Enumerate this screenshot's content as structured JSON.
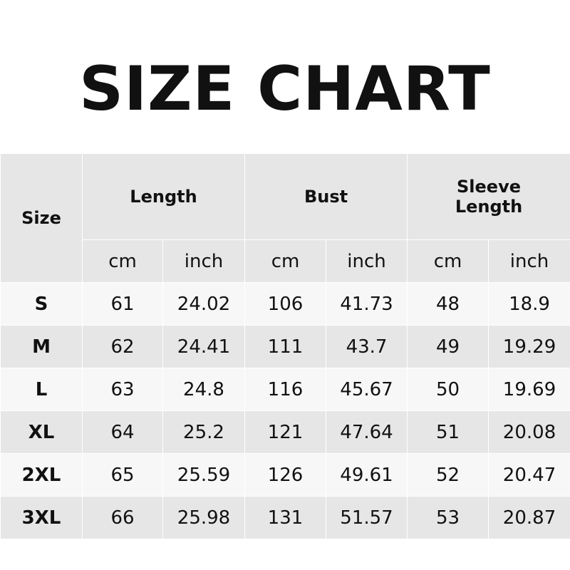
{
  "title": "SIZE CHART",
  "headers": {
    "size": "Size",
    "length": "Length",
    "bust": "Bust",
    "sleeve_line1": "Sleeve",
    "sleeve_line2": "Length",
    "cm": "cm",
    "inch": "inch"
  },
  "rows": [
    [
      "S",
      "61",
      "24.02",
      "106",
      "41.73",
      "48",
      "18.9"
    ],
    [
      "M",
      "62",
      "24.41",
      "111",
      "43.7",
      "49",
      "19.29"
    ],
    [
      "L",
      "63",
      "24.8",
      "116",
      "45.67",
      "50",
      "19.69"
    ],
    [
      "XL",
      "64",
      "25.2",
      "121",
      "47.64",
      "51",
      "20.08"
    ],
    [
      "2XL",
      "65",
      "25.59",
      "126",
      "49.61",
      "52",
      "20.47"
    ],
    [
      "3XL",
      "66",
      "25.98",
      "131",
      "51.57",
      "53",
      "20.87"
    ]
  ]
}
